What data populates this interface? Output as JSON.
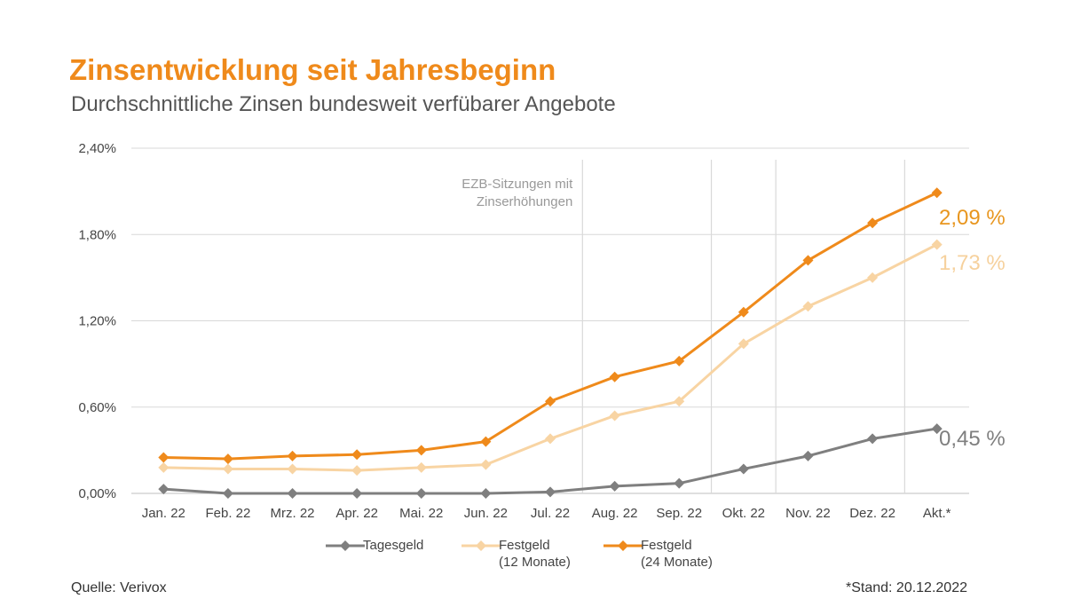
{
  "title": "Zinsentwicklung seit Jahresbeginn",
  "subtitle": "Durchschnittliche Zinsen bundesweit verfübarer Angebote",
  "source": "Quelle: Verivox",
  "stand": "*Stand: 20.12.2022",
  "colors": {
    "title": "#ef8a1b",
    "tagesgeld": "#7f7f7f",
    "festgeld12": "#f8d4a3",
    "festgeld24": "#ef8a1b",
    "grid": "#d9d9d9",
    "ezb_lines": "#d9d9d9"
  },
  "chart_data": {
    "type": "line",
    "categories": [
      "Jan. 22",
      "Feb. 22",
      "Mrz. 22",
      "Apr. 22",
      "Mai. 22",
      "Jun. 22",
      "Jul. 22",
      "Aug. 22",
      "Sep. 22",
      "Okt. 22",
      "Nov. 22",
      "Dez. 22",
      "Akt.*"
    ],
    "ylim": [
      0,
      2.4
    ],
    "yticks": [
      0,
      0.6,
      1.2,
      1.8,
      2.4
    ],
    "ytick_labels": [
      "0,00%",
      "0,60%",
      "1,20%",
      "1,80%",
      "2,40%"
    ],
    "grid": true,
    "series": [
      {
        "key": "tagesgeld",
        "name": "Tagesgeld",
        "name_lines": [
          "Tagesgeld"
        ],
        "color": "#7f7f7f",
        "values": [
          0.03,
          0.0,
          0.0,
          0.0,
          0.0,
          0.0,
          0.01,
          0.05,
          0.07,
          0.17,
          0.26,
          0.38,
          0.45
        ],
        "end_label": "0,45 %",
        "end_label_color": "#7f7f7f"
      },
      {
        "key": "festgeld12",
        "name": "Festgeld (12 Monate)",
        "name_lines": [
          "Festgeld",
          "(12 Monate)"
        ],
        "color": "#f8d4a3",
        "values": [
          0.18,
          0.17,
          0.17,
          0.16,
          0.18,
          0.2,
          0.38,
          0.54,
          0.64,
          1.04,
          1.3,
          1.5,
          1.73
        ],
        "end_label": "1,73 %",
        "end_label_color": "#f6d19d"
      },
      {
        "key": "festgeld24",
        "name": "Festgeld (24 Monate)",
        "name_lines": [
          "Festgeld",
          "(24 Monate)"
        ],
        "color": "#ef8a1b",
        "values": [
          0.25,
          0.24,
          0.26,
          0.27,
          0.3,
          0.36,
          0.64,
          0.81,
          0.92,
          1.26,
          1.62,
          1.88,
          2.09
        ],
        "end_label": "2,09 %",
        "end_label_color": "#e8961f"
      }
    ],
    "annotation": {
      "text_lines": [
        "EZB-Sitzungen mit",
        "Zinserhöhungen"
      ],
      "vertical_lines_after_categories": [
        "Jul. 22",
        "Sep. 22",
        "Okt. 22",
        "Dez. 22"
      ]
    }
  }
}
